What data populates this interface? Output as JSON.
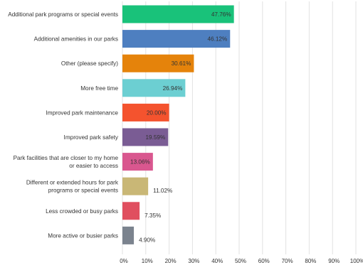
{
  "chart_data": {
    "type": "bar",
    "orientation": "horizontal",
    "categories": [
      [
        "Additional park programs or special events"
      ],
      [
        "Additional amenities in our parks"
      ],
      [
        "Other (please specify)"
      ],
      [
        "More free time"
      ],
      [
        "Improved park maintenance"
      ],
      [
        "Improved park safety"
      ],
      [
        "Park facilities that are closer to my home",
        "or easier to access"
      ],
      [
        "Different or extended hours for park",
        "programs or special events"
      ],
      [
        "Less crowded or busy parks"
      ],
      [
        "More active or busier parks"
      ]
    ],
    "values": [
      47.76,
      46.12,
      30.61,
      26.94,
      20.0,
      19.59,
      13.06,
      11.02,
      7.35,
      4.9
    ],
    "value_labels": [
      "47.76%",
      "46.12%",
      "30.61%",
      "26.94%",
      "20.00%",
      "19.59%",
      "13.06%",
      "11.02%",
      "7.35%",
      "4.90%"
    ],
    "colors": [
      "#19c27a",
      "#4e7fc0",
      "#e5830b",
      "#6ccfd2",
      "#f4532e",
      "#7a5c94",
      "#d9578f",
      "#c9b776",
      "#e04f5f",
      "#7b838e"
    ],
    "x_ticks": [
      "0%",
      "10%",
      "20%",
      "30%",
      "40%",
      "50%",
      "60%",
      "70%",
      "80%",
      "90%",
      "100%"
    ],
    "xlim": [
      0,
      100
    ],
    "grid": "vertical",
    "legend": "none",
    "title": "",
    "xlabel": "",
    "ylabel": ""
  }
}
